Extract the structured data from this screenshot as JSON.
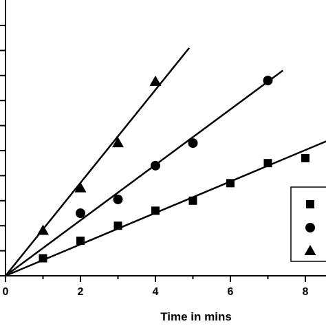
{
  "chart_data": {
    "type": "scatter",
    "xlabel": "Time in mins",
    "ylabel": "",
    "xlim": [
      0,
      8.6
    ],
    "ylim": [
      0,
      10.3
    ],
    "x_ticks": [
      0,
      2,
      4,
      6,
      8
    ],
    "y_tick_count_values": [
      0,
      1,
      2,
      3,
      4,
      5,
      6,
      7,
      8,
      9,
      10
    ],
    "grid": false,
    "legend_position": "right",
    "series": [
      {
        "marker": "square",
        "color": "#000000",
        "x": [
          1,
          2,
          3,
          4,
          5,
          6,
          7,
          8
        ],
        "y": [
          0.7,
          1.4,
          2.0,
          2.6,
          3.0,
          3.7,
          4.5,
          4.7
        ],
        "fit_line": {
          "x_end": 8.6,
          "y_end": 5.4
        }
      },
      {
        "marker": "circle",
        "color": "#000000",
        "x": [
          2,
          3,
          4,
          5,
          7
        ],
        "y": [
          2.5,
          3.05,
          4.4,
          5.3,
          7.8
        ],
        "fit_line": {
          "x_end": 7.4,
          "y_end": 8.2
        }
      },
      {
        "marker": "triangle",
        "color": "#000000",
        "x": [
          1,
          2,
          3,
          4
        ],
        "y": [
          1.8,
          3.5,
          5.3,
          7.75
        ],
        "fit_line": {
          "x_end": 4.9,
          "y_end": 9.1
        }
      }
    ]
  }
}
